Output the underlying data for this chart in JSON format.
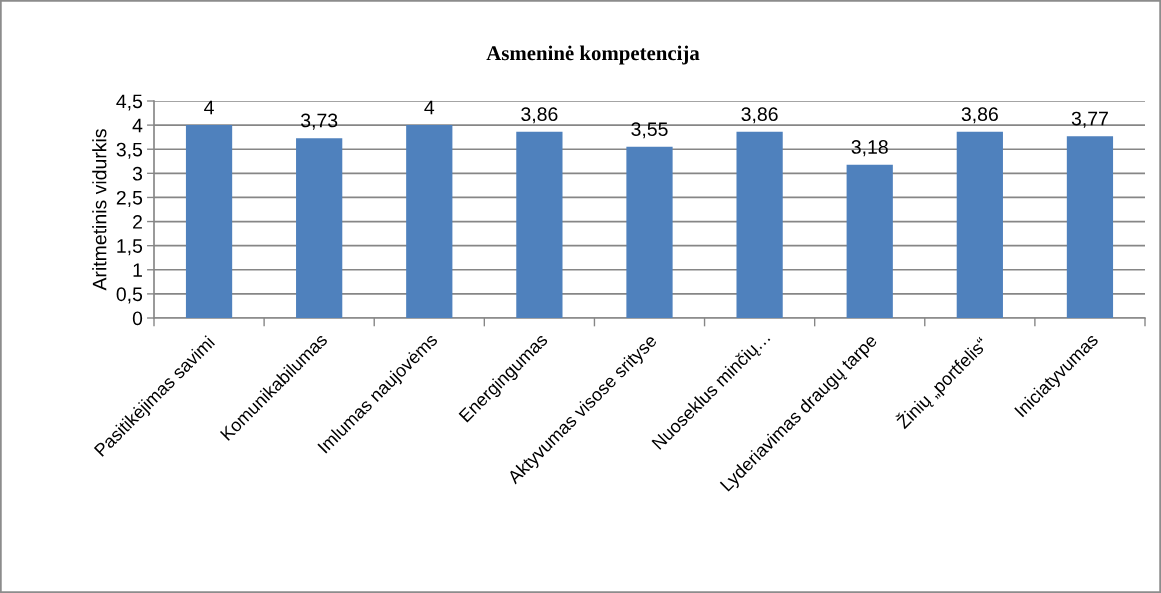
{
  "chart_data": {
    "type": "bar",
    "title": "Asmeninė kompetencija",
    "ylabel": "Aritmetinis vidurkis",
    "categories": [
      "Pasitikėjimas savimi",
      "Komunikabilumas",
      "Imlumas naujovėms",
      "Energingumas",
      "Aktyvumas visose srityse",
      "Nuoseklus minčių…",
      "Lyderiavimas draugų tarpe",
      "Žinių „portfelis“",
      "Iniciatyvumas"
    ],
    "values": [
      4,
      3.73,
      4,
      3.86,
      3.55,
      3.86,
      3.18,
      3.86,
      3.77
    ],
    "value_labels": [
      "4",
      "3,73",
      "4",
      "3,86",
      "3,55",
      "3,86",
      "3,18",
      "3,86",
      "3,77"
    ],
    "color": "#4f81bd",
    "ylim": [
      0,
      4.5
    ],
    "yticks": [
      0,
      {
        "value": 0.5,
        "label": "0,5"
      },
      1,
      {
        "value": 1.5,
        "label": "1,5"
      },
      2,
      {
        "value": 2.5,
        "label": "2,5"
      },
      3,
      {
        "value": 3.5,
        "label": "3,5"
      },
      4,
      {
        "value": 4.5,
        "label": "4,5"
      }
    ],
    "grid": "y"
  }
}
